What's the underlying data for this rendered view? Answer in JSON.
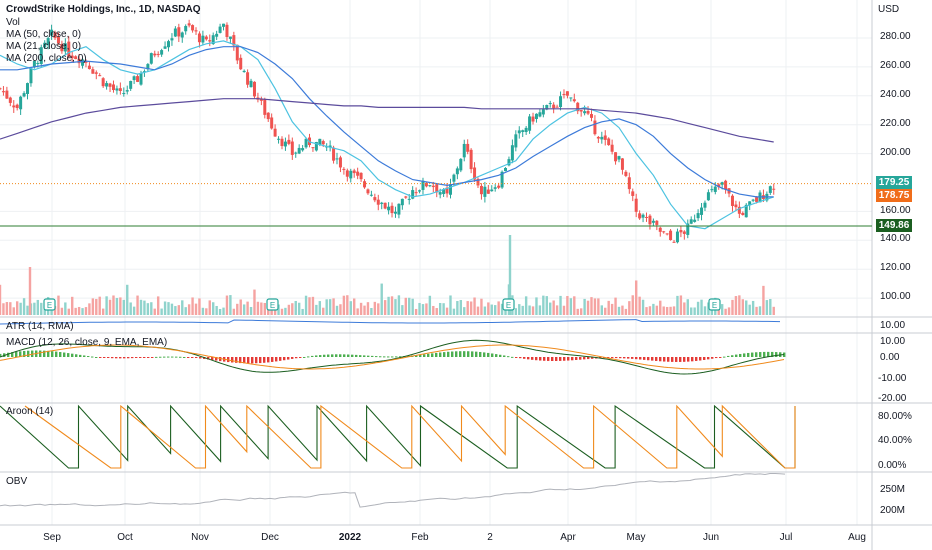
{
  "header": {
    "title": "CrowdStrike Holdings, Inc., 1D, NASDAQ",
    "indicators": [
      "Vol",
      "MA (50, close, 0)",
      "MA (21, close, 0)",
      "MA (200, close, 0)"
    ]
  },
  "axis": {
    "currency": "USD",
    "price_ticks": [
      "280.00",
      "260.00",
      "240.00",
      "220.00",
      "200.00",
      "160.00",
      "140.00",
      "120.00",
      "100.00"
    ],
    "x_labels": [
      "Sep",
      "Oct",
      "Nov",
      "Dec",
      "2022",
      "Feb",
      "2",
      "Apr",
      "May",
      "Jun",
      "Jul",
      "Aug"
    ],
    "price_tags": {
      "last": "179.25",
      "current": "178.75",
      "support": "149.86"
    }
  },
  "panes": {
    "atr": {
      "label": "ATR (14, RMA)",
      "tick": "10.00"
    },
    "macd": {
      "label": "MACD (12, 26, close, 9, EMA, EMA)",
      "ticks": [
        "10.00",
        "0.00",
        "-10.00",
        "-20.00"
      ]
    },
    "aroon": {
      "label": "Aroon (14)",
      "ticks": [
        "80.00%",
        "40.00%",
        "0.00%"
      ]
    },
    "obv": {
      "label": "OBV",
      "ticks": [
        "250M",
        "200M"
      ]
    }
  },
  "earnings_marker": "E",
  "colors": {
    "up": "#26a69a",
    "down": "#ef5350",
    "ma21": "#4dc3e1",
    "ma50": "#3d7bd9",
    "ma200": "#5b4b9c",
    "orange": "#f08a1c",
    "green": "#2e7d32"
  },
  "chart_data": {
    "type": "candlestick",
    "title": "CrowdStrike Holdings, Inc., 1D, NASDAQ",
    "ylabel": "USD",
    "ylim": [
      90,
      300
    ],
    "x_range": [
      "2021-08-20",
      "2022-08-10"
    ],
    "closes": [
      [
        "2021-08-20",
        245
      ],
      [
        "2021-08-27",
        232
      ],
      [
        "2021-09-03",
        262
      ],
      [
        "2021-09-10",
        282
      ],
      [
        "2021-09-17",
        270
      ],
      [
        "2021-09-24",
        264
      ],
      [
        "2021-10-01",
        250
      ],
      [
        "2021-10-08",
        240
      ],
      [
        "2021-10-15",
        252
      ],
      [
        "2021-10-22",
        270
      ],
      [
        "2021-10-29",
        282
      ],
      [
        "2021-11-05",
        287
      ],
      [
        "2021-11-12",
        276
      ],
      [
        "2021-11-19",
        290
      ],
      [
        "2021-11-26",
        260
      ],
      [
        "2021-12-03",
        238
      ],
      [
        "2021-12-10",
        215
      ],
      [
        "2021-12-17",
        200
      ],
      [
        "2021-12-24",
        208
      ],
      [
        "2021-12-31",
        205
      ],
      [
        "2022-01-07",
        190
      ],
      [
        "2022-01-14",
        180
      ],
      [
        "2022-01-21",
        168
      ],
      [
        "2022-01-28",
        158
      ],
      [
        "2022-02-04",
        175
      ],
      [
        "2022-02-11",
        180
      ],
      [
        "2022-02-18",
        170
      ],
      [
        "2022-02-25",
        205
      ],
      [
        "2022-03-04",
        172
      ],
      [
        "2022-03-11",
        180
      ],
      [
        "2022-03-18",
        210
      ],
      [
        "2022-03-25",
        225
      ],
      [
        "2022-04-01",
        232
      ],
      [
        "2022-04-08",
        240
      ],
      [
        "2022-04-15",
        228
      ],
      [
        "2022-04-22",
        210
      ],
      [
        "2022-04-29",
        195
      ],
      [
        "2022-05-06",
        160
      ],
      [
        "2022-05-13",
        150
      ],
      [
        "2022-05-20",
        140
      ],
      [
        "2022-05-27",
        148
      ],
      [
        "2022-06-03",
        170
      ],
      [
        "2022-06-10",
        178
      ],
      [
        "2022-06-17",
        158
      ],
      [
        "2022-06-24",
        168
      ],
      [
        "2022-07-01",
        178.75
      ]
    ],
    "lines": {
      "last_price": 179.25,
      "support": 149.86
    },
    "series": [
      {
        "name": "MA (21, close, 0)",
        "values": [
          268,
          262,
          258,
          262,
          270,
          274,
          265,
          258,
          255,
          258,
          265,
          272,
          276,
          278,
          274,
          265,
          245,
          222,
          208,
          205,
          202,
          195,
          182,
          175,
          170,
          172,
          176,
          180,
          185,
          190,
          195,
          210,
          220,
          228,
          232,
          228,
          218,
          200,
          185,
          165,
          150,
          148,
          155,
          162,
          166,
          170
        ]
      },
      {
        "name": "MA (50, close, 0)",
        "values": [
          258,
          258,
          260,
          262,
          263,
          264,
          263,
          262,
          260,
          258,
          262,
          268,
          272,
          274,
          274,
          270,
          262,
          252,
          238,
          226,
          215,
          205,
          195,
          188,
          182,
          180,
          178,
          180,
          182,
          185,
          190,
          198,
          205,
          212,
          218,
          222,
          224,
          220,
          212,
          200,
          190,
          182,
          176,
          172,
          170,
          170
        ]
      },
      {
        "name": "MA (200, close, 0)",
        "values": [
          210,
          214,
          218,
          222,
          225,
          228,
          230,
          232,
          233,
          234,
          235,
          236,
          237,
          238,
          238,
          238,
          237,
          236,
          235,
          234,
          233,
          233,
          232,
          232,
          232,
          232,
          232,
          232,
          231,
          231,
          231,
          231,
          231,
          231,
          231,
          230,
          229,
          228,
          226,
          224,
          221,
          218,
          215,
          212,
          210,
          208
        ]
      }
    ]
  }
}
